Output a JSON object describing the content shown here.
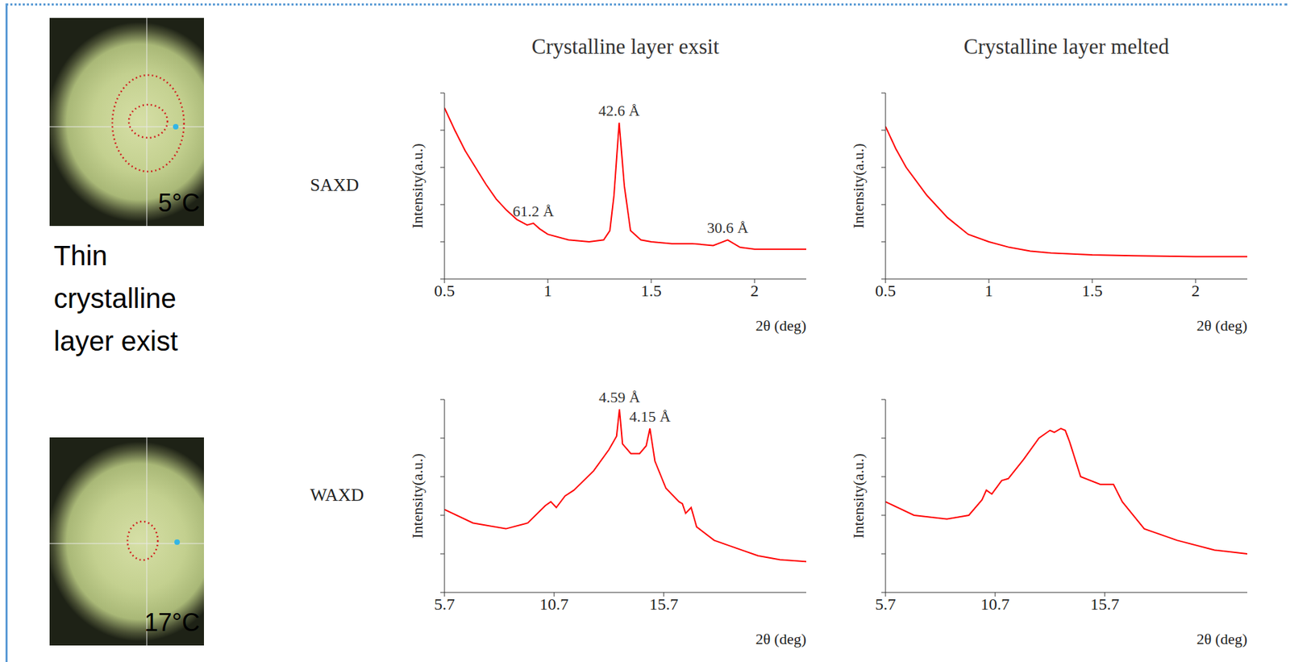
{
  "column_titles": [
    "Crystalline layer exsit",
    "Crystalline layer melted"
  ],
  "row_labels": [
    "SAXD",
    "WAXD"
  ],
  "images": [
    {
      "label": "5°C",
      "caption": "Thin crystalline layer exist"
    },
    {
      "label": "17°C"
    }
  ],
  "chart_data": [
    {
      "type": "line",
      "x_label": "2θ (deg)",
      "y_label": "Intensity(a.u.)",
      "xlim": [
        0.5,
        2.25
      ],
      "ylim": [
        0,
        1
      ],
      "xticks": [
        0.5,
        1,
        1.5,
        2
      ],
      "yticks": [
        0,
        0.2,
        0.4,
        0.6,
        0.8,
        1
      ],
      "tick_labels": "x",
      "grid": false,
      "color": "#ff0000",
      "x": [
        0.5,
        0.55,
        0.6,
        0.65,
        0.7,
        0.75,
        0.8,
        0.85,
        0.9,
        0.93,
        0.96,
        1.0,
        1.1,
        1.2,
        1.27,
        1.3,
        1.32,
        1.345,
        1.37,
        1.4,
        1.45,
        1.5,
        1.6,
        1.7,
        1.8,
        1.87,
        1.93,
        2.0,
        2.1,
        2.25
      ],
      "values": [
        0.92,
        0.8,
        0.69,
        0.6,
        0.51,
        0.43,
        0.37,
        0.32,
        0.29,
        0.3,
        0.27,
        0.24,
        0.21,
        0.2,
        0.21,
        0.26,
        0.45,
        0.84,
        0.5,
        0.26,
        0.21,
        0.2,
        0.19,
        0.19,
        0.18,
        0.21,
        0.17,
        0.16,
        0.16,
        0.16
      ],
      "annotations": [
        {
          "x": 0.93,
          "y": 0.3,
          "text": "61.2 Å"
        },
        {
          "x": 1.345,
          "y": 0.84,
          "text": "42.6 Å"
        },
        {
          "x": 1.87,
          "y": 0.21,
          "text": "30.6 Å"
        }
      ]
    },
    {
      "type": "line",
      "x_label": "2θ (deg)",
      "y_label": "Intensity(a.u.)",
      "xlim": [
        0.5,
        2.25
      ],
      "ylim": [
        0,
        1
      ],
      "xticks": [
        0.5,
        1,
        1.5,
        2
      ],
      "yticks": [
        0,
        0.2,
        0.4,
        0.6,
        0.8,
        1
      ],
      "tick_labels": "x",
      "grid": false,
      "color": "#ff0000",
      "x": [
        0.5,
        0.55,
        0.6,
        0.7,
        0.8,
        0.9,
        1.0,
        1.1,
        1.2,
        1.3,
        1.5,
        1.7,
        2.0,
        2.25
      ],
      "values": [
        0.82,
        0.7,
        0.6,
        0.45,
        0.33,
        0.24,
        0.2,
        0.17,
        0.15,
        0.14,
        0.13,
        0.125,
        0.12,
        0.12
      ]
    },
    {
      "type": "line",
      "x_label": "2θ (deg)",
      "y_label": "Intensity(a.u.)",
      "xlim": [
        5.7,
        22.2
      ],
      "ylim": [
        0,
        1
      ],
      "xticks": [
        5.7,
        10.7,
        15.7
      ],
      "yticks": [
        0,
        0.2,
        0.4,
        0.6,
        0.8,
        1
      ],
      "tick_labels": "x",
      "grid": false,
      "color": "#ff0000",
      "x": [
        5.7,
        7.0,
        8.5,
        9.5,
        10.3,
        10.55,
        10.8,
        11.2,
        11.6,
        12.5,
        13.2,
        13.55,
        13.68,
        13.82,
        14.2,
        14.6,
        14.9,
        15.07,
        15.3,
        15.8,
        16.4,
        16.55,
        16.7,
        16.95,
        17.2,
        18,
        19,
        20,
        21,
        22.2
      ],
      "values": [
        0.43,
        0.36,
        0.33,
        0.36,
        0.45,
        0.47,
        0.44,
        0.5,
        0.53,
        0.63,
        0.74,
        0.81,
        0.95,
        0.77,
        0.72,
        0.72,
        0.76,
        0.85,
        0.68,
        0.54,
        0.47,
        0.46,
        0.41,
        0.44,
        0.34,
        0.27,
        0.23,
        0.19,
        0.17,
        0.16
      ],
      "annotations": [
        {
          "x": 13.68,
          "y": 0.95,
          "text": "4.59 Å"
        },
        {
          "x": 15.07,
          "y": 0.85,
          "text": "4.15 Å"
        }
      ]
    },
    {
      "type": "line",
      "x_label": "2θ (deg)",
      "y_label": "Intensity(a.u.)",
      "xlim": [
        5.7,
        22.2
      ],
      "ylim": [
        0,
        1
      ],
      "xticks": [
        5.7,
        10.7,
        15.7
      ],
      "yticks": [
        0,
        0.2,
        0.4,
        0.6,
        0.8,
        1
      ],
      "tick_labels": "x",
      "grid": false,
      "color": "#ff0000",
      "x": [
        5.7,
        7,
        8.5,
        9.5,
        10.1,
        10.3,
        10.55,
        11.0,
        11.3,
        12.0,
        12.7,
        13.2,
        13.4,
        13.7,
        13.9,
        14.1,
        14.6,
        15.5,
        16.1,
        16.5,
        17.5,
        19,
        20.7,
        22.2
      ],
      "values": [
        0.47,
        0.4,
        0.38,
        0.4,
        0.48,
        0.53,
        0.51,
        0.58,
        0.59,
        0.69,
        0.8,
        0.84,
        0.83,
        0.85,
        0.84,
        0.78,
        0.6,
        0.56,
        0.56,
        0.47,
        0.33,
        0.27,
        0.22,
        0.2
      ]
    }
  ]
}
